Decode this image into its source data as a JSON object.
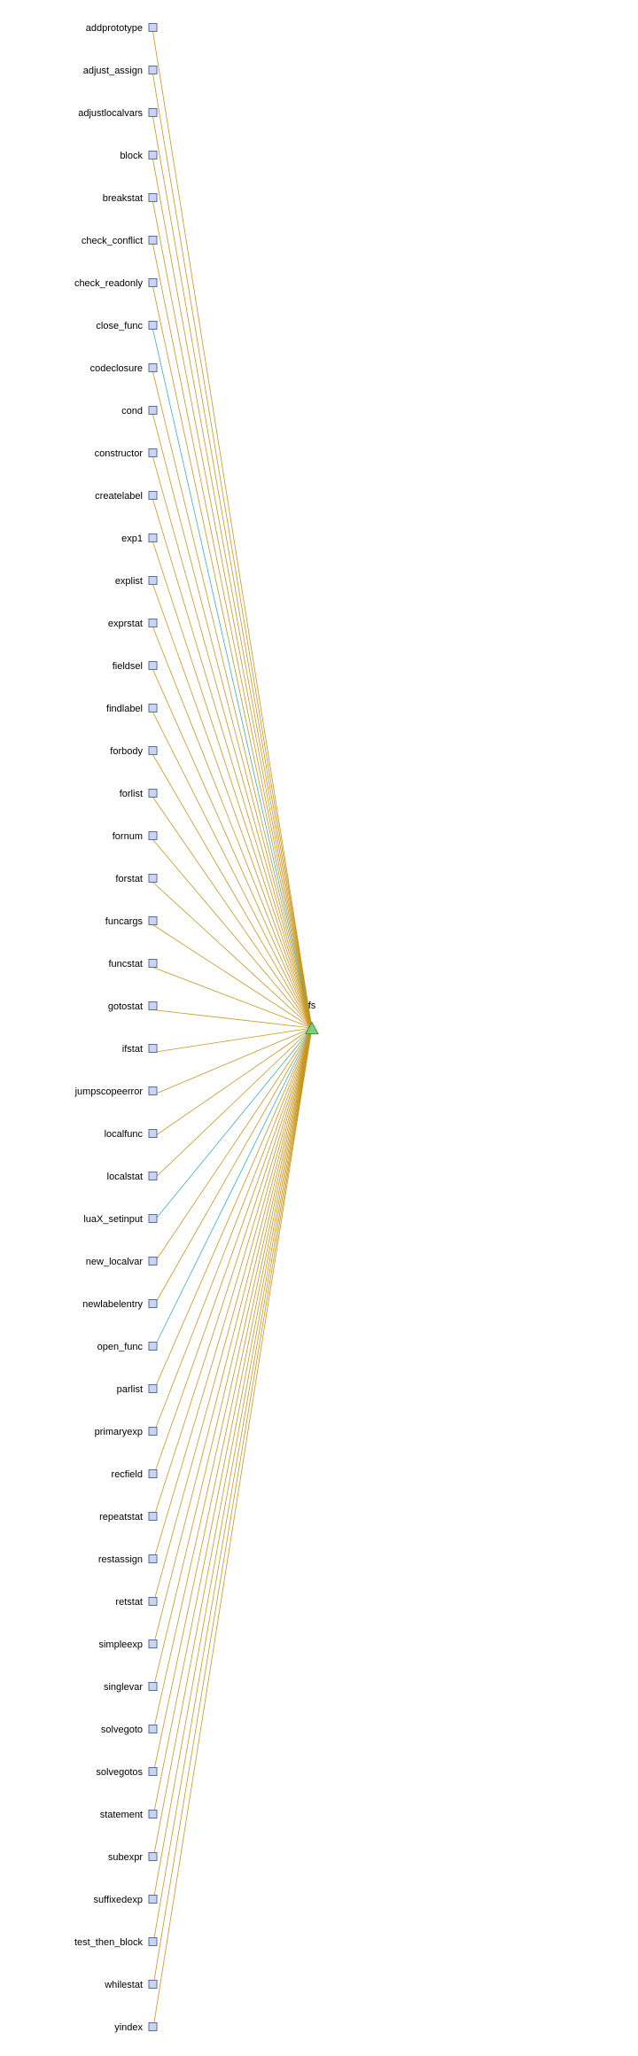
{
  "graph": {
    "target": {
      "label": "fs",
      "shape": "triangle",
      "fill": "#7ccf7c",
      "stroke": "#3a9a3a"
    },
    "node_style": {
      "shape": "square",
      "fill": "#c8d4f0",
      "stroke": "#5a6aa8"
    },
    "edge_colors": {
      "default": "#c8961e",
      "highlight": "#3ab0b8"
    },
    "sources": [
      {
        "label": "addprototype",
        "edge": "default"
      },
      {
        "label": "adjust_assign",
        "edge": "default"
      },
      {
        "label": "adjustlocalvars",
        "edge": "default"
      },
      {
        "label": "block",
        "edge": "default"
      },
      {
        "label": "breakstat",
        "edge": "default"
      },
      {
        "label": "check_conflict",
        "edge": "default"
      },
      {
        "label": "check_readonly",
        "edge": "default"
      },
      {
        "label": "close_func",
        "edge": "highlight"
      },
      {
        "label": "codeclosure",
        "edge": "default"
      },
      {
        "label": "cond",
        "edge": "default"
      },
      {
        "label": "constructor",
        "edge": "default"
      },
      {
        "label": "createlabel",
        "edge": "default"
      },
      {
        "label": "exp1",
        "edge": "default"
      },
      {
        "label": "explist",
        "edge": "default"
      },
      {
        "label": "exprstat",
        "edge": "default"
      },
      {
        "label": "fieldsel",
        "edge": "default"
      },
      {
        "label": "findlabel",
        "edge": "default"
      },
      {
        "label": "forbody",
        "edge": "default"
      },
      {
        "label": "forlist",
        "edge": "default"
      },
      {
        "label": "fornum",
        "edge": "default"
      },
      {
        "label": "forstat",
        "edge": "default"
      },
      {
        "label": "funcargs",
        "edge": "default"
      },
      {
        "label": "funcstat",
        "edge": "default"
      },
      {
        "label": "gotostat",
        "edge": "default"
      },
      {
        "label": "ifstat",
        "edge": "default"
      },
      {
        "label": "jumpscopeerror",
        "edge": "default"
      },
      {
        "label": "localfunc",
        "edge": "default"
      },
      {
        "label": "localstat",
        "edge": "default"
      },
      {
        "label": "luaX_setinput",
        "edge": "highlight"
      },
      {
        "label": "new_localvar",
        "edge": "default"
      },
      {
        "label": "newlabelentry",
        "edge": "default"
      },
      {
        "label": "open_func",
        "edge": "highlight"
      },
      {
        "label": "parlist",
        "edge": "default"
      },
      {
        "label": "primaryexp",
        "edge": "default"
      },
      {
        "label": "recfield",
        "edge": "default"
      },
      {
        "label": "repeatstat",
        "edge": "default"
      },
      {
        "label": "restassign",
        "edge": "default"
      },
      {
        "label": "retstat",
        "edge": "default"
      },
      {
        "label": "simpleexp",
        "edge": "default"
      },
      {
        "label": "singlevar",
        "edge": "default"
      },
      {
        "label": "solvegoto",
        "edge": "default"
      },
      {
        "label": "solvegotos",
        "edge": "default"
      },
      {
        "label": "statement",
        "edge": "default"
      },
      {
        "label": "subexpr",
        "edge": "default"
      },
      {
        "label": "suffixedexp",
        "edge": "default"
      },
      {
        "label": "test_then_block",
        "edge": "default"
      },
      {
        "label": "whilestat",
        "edge": "default"
      },
      {
        "label": "yindex",
        "edge": "default"
      }
    ]
  }
}
